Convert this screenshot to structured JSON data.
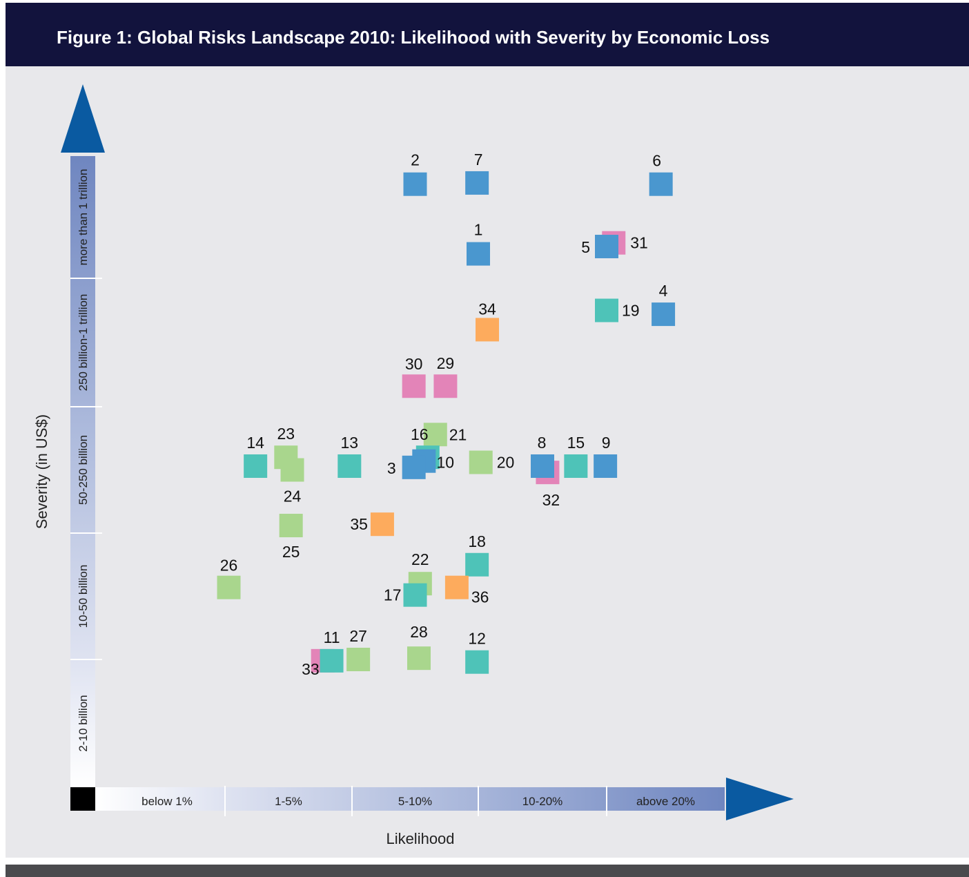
{
  "title": "Figure 1: Global Risks Landscape 2010: Likelihood with Severity by Economic Loss",
  "chart_data": {
    "type": "scatter",
    "title": "Figure 1: Global Risks Landscape 2010: Likelihood with Severity by Economic Loss",
    "xlabel": "Likelihood",
    "ylabel": "Severity (in US$)",
    "x_bands": [
      "below 1%",
      "1-5%",
      "5-10%",
      "10-20%",
      "above 20%"
    ],
    "y_bands": [
      "2-10 billion",
      "10-50 billion",
      "50-250 billion",
      "250 billion-1 trillion",
      "more than 1 trillion"
    ],
    "xlim": [
      0,
      5
    ],
    "ylim": [
      0,
      5
    ],
    "category_colors": {
      "economic": "#4a97cf",
      "geopolitical": "#e384b8",
      "environmental": "#a9d68d",
      "societal": "#4ec3b8",
      "technological": "#fdab5d"
    },
    "points": [
      {
        "id": "1",
        "x": 3.0,
        "y": 4.2,
        "color": "#4a97cf"
      },
      {
        "id": "2",
        "x": 2.5,
        "y": 4.77,
        "color": "#4a97cf"
      },
      {
        "id": "3",
        "x": 2.49,
        "y": 2.52,
        "color": "#4a97cf"
      },
      {
        "id": "4",
        "x": 4.48,
        "y": 3.72,
        "color": "#4a97cf"
      },
      {
        "id": "5",
        "x": 4.0,
        "y": 4.26,
        "color": "#4a97cf"
      },
      {
        "id": "6",
        "x": 4.46,
        "y": 4.77,
        "color": "#4a97cf"
      },
      {
        "id": "7",
        "x": 2.99,
        "y": 4.78,
        "color": "#4a97cf"
      },
      {
        "id": "8",
        "x": 3.5,
        "y": 2.53,
        "color": "#4a97cf"
      },
      {
        "id": "9",
        "x": 3.99,
        "y": 2.53,
        "color": "#4a97cf"
      },
      {
        "id": "10",
        "x": 2.57,
        "y": 2.57,
        "color": "#4a97cf"
      },
      {
        "id": "11",
        "x": 1.84,
        "y": 0.99,
        "color": "#4ec3b8"
      },
      {
        "id": "12",
        "x": 2.99,
        "y": 0.98,
        "color": "#4ec3b8"
      },
      {
        "id": "13",
        "x": 1.98,
        "y": 2.53,
        "color": "#4ec3b8"
      },
      {
        "id": "14",
        "x": 1.24,
        "y": 2.53,
        "color": "#4ec3b8"
      },
      {
        "id": "15",
        "x": 3.76,
        "y": 2.53,
        "color": "#4ec3b8"
      },
      {
        "id": "16",
        "x": 2.6,
        "y": 2.6,
        "color": "#4ec3b8"
      },
      {
        "id": "17",
        "x": 2.5,
        "y": 1.51,
        "color": "#4ec3b8"
      },
      {
        "id": "18",
        "x": 2.99,
        "y": 1.75,
        "color": "#4ec3b8"
      },
      {
        "id": "19",
        "x": 4.0,
        "y": 3.75,
        "color": "#4ec3b8"
      },
      {
        "id": "20",
        "x": 3.02,
        "y": 2.56,
        "color": "#a9d68d"
      },
      {
        "id": "21",
        "x": 2.66,
        "y": 2.78,
        "color": "#a9d68d"
      },
      {
        "id": "22",
        "x": 2.54,
        "y": 1.6,
        "color": "#a9d68d"
      },
      {
        "id": "23",
        "x": 1.48,
        "y": 2.6,
        "color": "#a9d68d"
      },
      {
        "id": "24",
        "x": 1.53,
        "y": 2.5,
        "color": "#a9d68d"
      },
      {
        "id": "25",
        "x": 1.52,
        "y": 2.06,
        "color": "#a9d68d"
      },
      {
        "id": "26",
        "x": 1.03,
        "y": 1.57,
        "color": "#a9d68d"
      },
      {
        "id": "27",
        "x": 2.05,
        "y": 1.0,
        "color": "#a9d68d"
      },
      {
        "id": "28",
        "x": 2.53,
        "y": 1.01,
        "color": "#a9d68d"
      },
      {
        "id": "29",
        "x": 2.74,
        "y": 3.16,
        "color": "#e384b8"
      },
      {
        "id": "30",
        "x": 2.49,
        "y": 3.16,
        "color": "#e384b8"
      },
      {
        "id": "31",
        "x": 4.06,
        "y": 4.29,
        "color": "#e384b8"
      },
      {
        "id": "32",
        "x": 3.54,
        "y": 2.48,
        "color": "#e384b8"
      },
      {
        "id": "33",
        "x": 1.77,
        "y": 0.99,
        "color": "#e384b8"
      },
      {
        "id": "34",
        "x": 3.07,
        "y": 3.6,
        "color": "#fdab5d"
      },
      {
        "id": "35",
        "x": 2.24,
        "y": 2.07,
        "color": "#fdab5d"
      },
      {
        "id": "36",
        "x": 2.83,
        "y": 1.57,
        "color": "#fdab5d"
      }
    ]
  }
}
